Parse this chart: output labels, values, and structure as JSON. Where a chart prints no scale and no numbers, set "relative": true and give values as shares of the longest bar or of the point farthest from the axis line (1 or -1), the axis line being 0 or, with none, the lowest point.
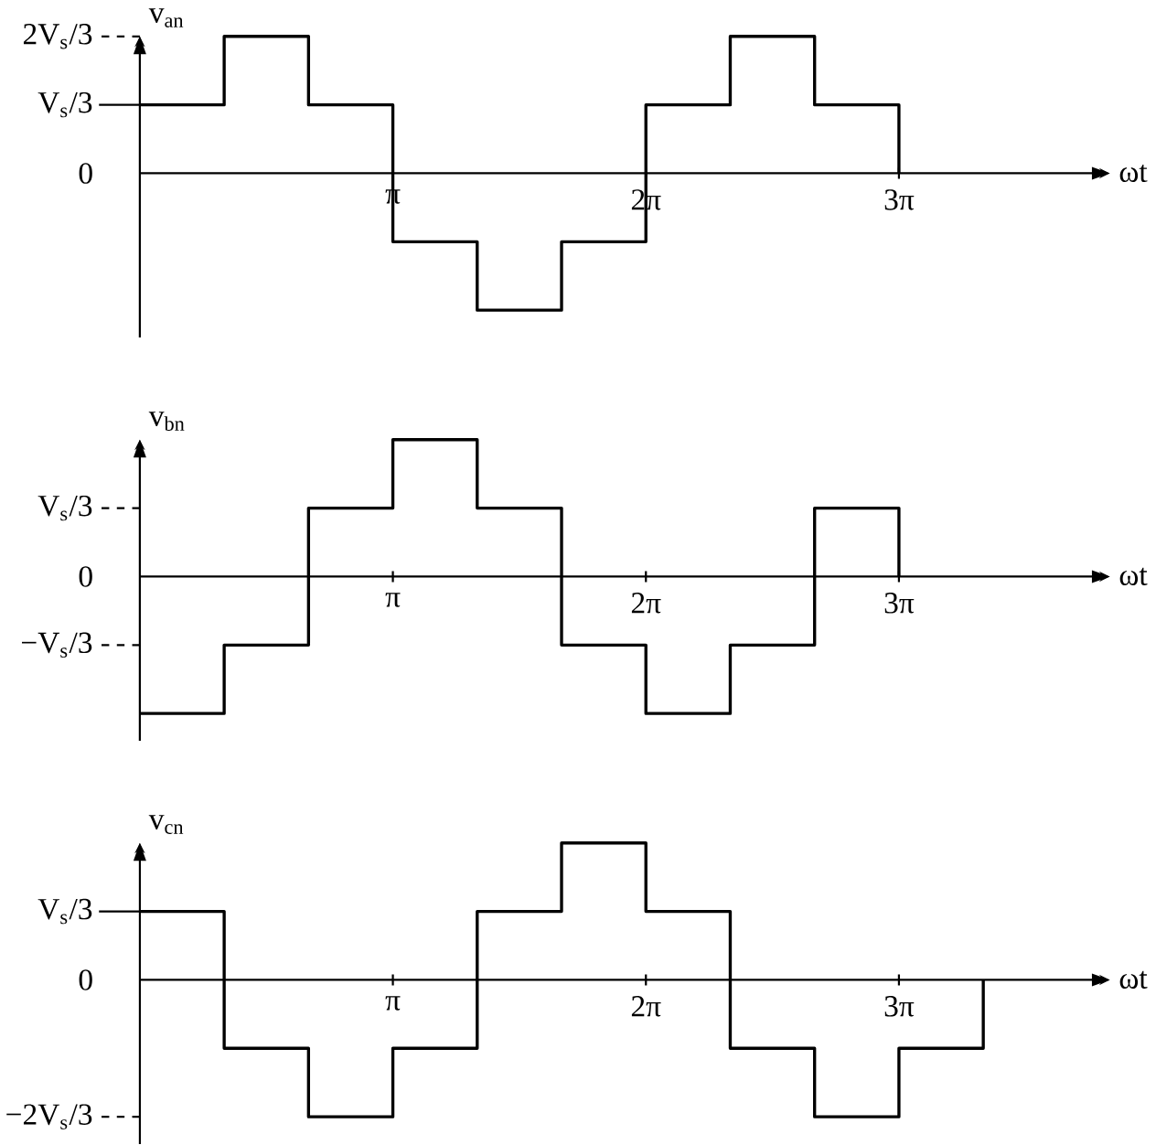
{
  "chart_data": [
    {
      "type": "step",
      "relative": true,
      "xlabel": "ωt",
      "ylabel": "v$_{an}$",
      "color": "#000000",
      "line_style": "solid",
      "marker": "none",
      "categories": [
        null,
        null,
        null,
        "π",
        null,
        null,
        "2π",
        null,
        null,
        "3π"
      ],
      "values": [
        0.5,
        1,
        0.5,
        -0.5,
        -1,
        -0.5,
        0.5,
        1,
        0.5,
        0
      ],
      "ref_lines": [
        {
          "axis": "y",
          "value": 1,
          "label": "2V$_{s}$/3",
          "line_style": "dashed"
        },
        {
          "axis": "y",
          "value": 0.5,
          "label": "V$_{s}$/3",
          "line_style": "solid"
        }
      ],
      "annotations": [
        "0"
      ]
    },
    {
      "type": "step",
      "relative": true,
      "xlabel": "ωt",
      "ylabel": "v$_{bn}$",
      "color": "#000000",
      "line_style": "solid",
      "marker": "none",
      "categories": [
        null,
        null,
        null,
        "π",
        null,
        null,
        "2π",
        null,
        null,
        "3π"
      ],
      "values": [
        -1,
        -0.5,
        0.5,
        1,
        0.5,
        -0.5,
        -1,
        -0.5,
        0.5,
        0
      ],
      "ref_lines": [
        {
          "axis": "y",
          "value": 0.5,
          "label": "V$_{s}$/3",
          "line_style": "dashed"
        },
        {
          "axis": "y",
          "value": -0.5,
          "label": "−V$_{s}$/3",
          "line_style": "dashed"
        }
      ],
      "annotations": [
        "0"
      ]
    },
    {
      "type": "step",
      "relative": true,
      "xlabel": "ωt",
      "ylabel": "v$_{cn}$",
      "color": "#000000",
      "line_style": "solid",
      "marker": "none",
      "categories": [
        null,
        null,
        null,
        "π",
        null,
        null,
        "2π",
        null,
        null,
        "3π",
        null
      ],
      "values": [
        0.5,
        -0.5,
        -1,
        -0.5,
        0.5,
        1,
        0.5,
        -0.5,
        -1,
        -0.5,
        0
      ],
      "ref_lines": [
        {
          "axis": "y",
          "value": 0.5,
          "label": "V$_{s}$/3",
          "line_style": "solid"
        },
        {
          "axis": "y",
          "value": -1,
          "label": "−2V$_{s}$/3",
          "line_style": "dashed"
        }
      ],
      "annotations": [
        "0"
      ]
    }
  ]
}
